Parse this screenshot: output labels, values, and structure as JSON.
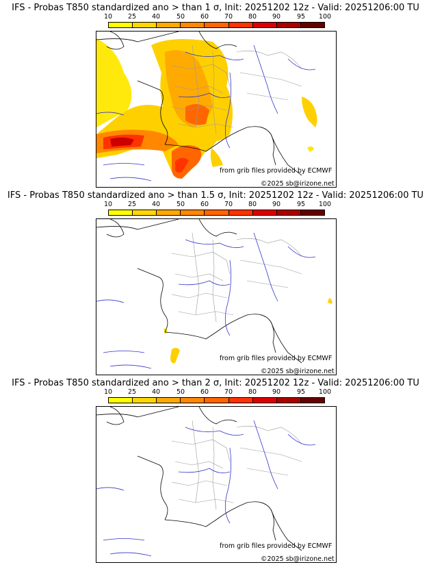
{
  "scale": {
    "ticks": [
      "10",
      "25",
      "40",
      "50",
      "60",
      "70",
      "80",
      "90",
      "95",
      "100"
    ],
    "colors": [
      "#ffff00",
      "#ffd700",
      "#ffaa00",
      "#ff8800",
      "#ff6600",
      "#ff3300",
      "#dd0000",
      "#aa0000",
      "#660000"
    ]
  },
  "panels": [
    {
      "title": "IFS - Probas T850  standardized ano > than 1 σ, Init: 20251202 12z - Valid: 20251206:00 TU",
      "credit": "from grib files provided by ECMWF",
      "copyright": "©2025 sb@irizone.net",
      "intensity": "high"
    },
    {
      "title": "IFS - Probas T850  standardized ano > than 1.5 σ, Init: 20251202 12z - Valid: 20251206:00 TU",
      "credit": "from grib files provided by ECMWF",
      "copyright": "©2025 sb@irizone.net",
      "intensity": "low"
    },
    {
      "title": "IFS - Probas T850  standardized ano > than 2 σ, Init: 20251202 12z - Valid: 20251206:00 TU",
      "credit": "from grib files provided by ECMWF",
      "copyright": "©2025 sb@irizone.net",
      "intensity": "none"
    }
  ]
}
